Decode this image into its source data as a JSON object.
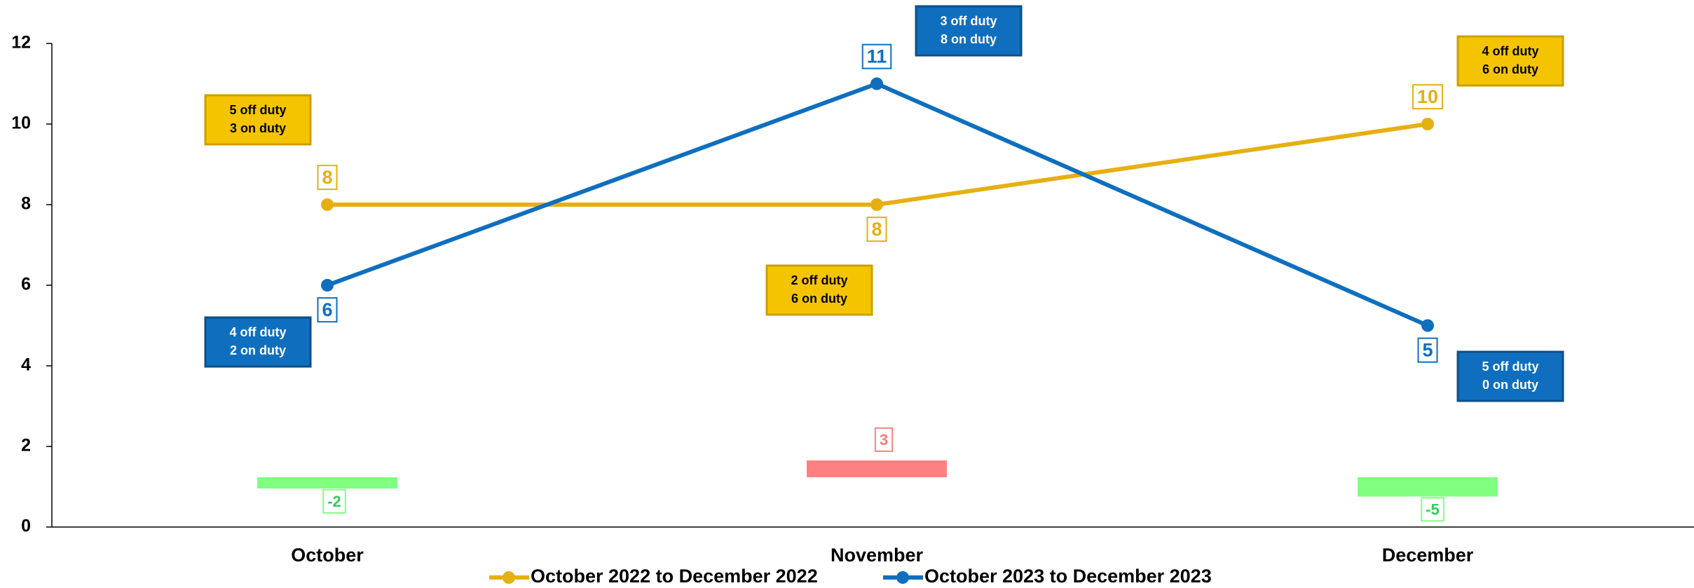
{
  "chart_data": {
    "type": "line",
    "categories": [
      "October",
      "November",
      "December"
    ],
    "series": [
      {
        "name": "October 2022 to December 2022",
        "color": "#E6B012",
        "values": [
          8,
          8,
          10
        ]
      },
      {
        "name": "October 2023 to December 2023",
        "color": "#0F6FBE",
        "values": [
          6,
          11,
          5
        ]
      }
    ],
    "ylim": [
      0,
      12
    ],
    "yticks": [
      0,
      2,
      4,
      6,
      8,
      10,
      12
    ],
    "annotations": [
      {
        "lines": [
          "5 off duty",
          "3 on duty"
        ],
        "color": "#F5C400"
      },
      {
        "lines": [
          "4 off duty",
          "2 on duty"
        ],
        "color": "#0F6FBE"
      },
      {
        "lines": [
          "2 off duty",
          "6 on duty"
        ],
        "color": "#F5C400"
      },
      {
        "lines": [
          "3 off duty",
          "8 on duty"
        ],
        "color": "#0F6FBE"
      },
      {
        "lines": [
          "4 off duty",
          "6 on duty"
        ],
        "color": "#F5C400"
      },
      {
        "lines": [
          "5 off duty",
          "0 on duty"
        ],
        "color": "#0F6FBE"
      }
    ],
    "differences": {
      "values": [
        -2,
        3,
        -5
      ],
      "colors": [
        "#80FF80",
        "#FF8080",
        "#80FF80"
      ],
      "label_colors": [
        "#33CC55",
        "#FF7777",
        "#33CC55"
      ]
    }
  }
}
